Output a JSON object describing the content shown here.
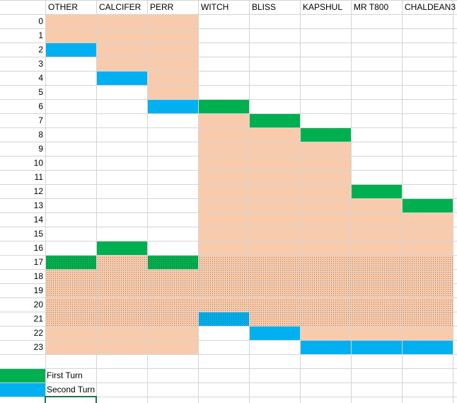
{
  "columns": [
    "OTHER",
    "CALCIFER",
    "PERR",
    "WITCH",
    "BLISS",
    "KAPSHUL",
    "MR T800",
    "CHALDEAN3"
  ],
  "rows": [
    0,
    1,
    2,
    3,
    4,
    5,
    6,
    7,
    8,
    9,
    10,
    11,
    12,
    13,
    14,
    15,
    16,
    17,
    18,
    19,
    20,
    21,
    22,
    23
  ],
  "legend": [
    "First Turn",
    "Second Turn"
  ]
}
